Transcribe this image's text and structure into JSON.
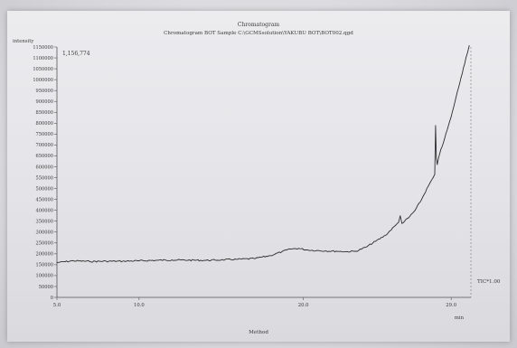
{
  "chart_data": {
    "type": "line",
    "title": "Chromatogram",
    "subtitle": "Chromatogram BOT Sample C:\\GCMSsolution\\YAKUBU BOT\\BOT002.qgd",
    "ylabel": "intensity",
    "xlabel": "min",
    "max_label": "1,156,774",
    "series_label": "TIC*1.00",
    "footer": "Method",
    "xlim": [
      5.0,
      30.2
    ],
    "ylim": [
      0,
      1150000
    ],
    "x_ticks": [
      {
        "value": 5.0,
        "label": "5.0"
      },
      {
        "value": 10.0,
        "label": "10.0"
      },
      {
        "value": 20.0,
        "label": "20.0"
      },
      {
        "value": 29.0,
        "label": "29.0"
      }
    ],
    "y_ticks": [
      {
        "value": 0,
        "label": "0"
      },
      {
        "value": 50000,
        "label": "50000"
      },
      {
        "value": 100000,
        "label": "100000"
      },
      {
        "value": 150000,
        "label": "150000"
      },
      {
        "value": 200000,
        "label": "200000"
      },
      {
        "value": 250000,
        "label": "250000"
      },
      {
        "value": 300000,
        "label": "300000"
      },
      {
        "value": 350000,
        "label": "350000"
      },
      {
        "value": 400000,
        "label": "400000"
      },
      {
        "value": 450000,
        "label": "450000"
      },
      {
        "value": 500000,
        "label": "500000"
      },
      {
        "value": 550000,
        "label": "550000"
      },
      {
        "value": 600000,
        "label": "600000"
      },
      {
        "value": 650000,
        "label": "650000"
      },
      {
        "value": 700000,
        "label": "700000"
      },
      {
        "value": 750000,
        "label": "750000"
      },
      {
        "value": 800000,
        "label": "800000"
      },
      {
        "value": 850000,
        "label": "850000"
      },
      {
        "value": 900000,
        "label": "900000"
      },
      {
        "value": 950000,
        "label": "950000"
      },
      {
        "value": 1000000,
        "label": "1000000"
      },
      {
        "value": 1050000,
        "label": "1050000"
      },
      {
        "value": 1100000,
        "label": "1100000"
      },
      {
        "value": 1150000,
        "label": "1150000"
      }
    ],
    "series": [
      {
        "name": "TIC*1.00",
        "x": [
          5.0,
          6.0,
          7.0,
          8.0,
          9.0,
          10.0,
          11.0,
          12.0,
          13.0,
          14.0,
          15.0,
          16.0,
          17.0,
          18.0,
          18.7,
          19.2,
          19.7,
          20.2,
          20.8,
          21.4,
          22.0,
          22.6,
          23.2,
          23.8,
          24.4,
          25.0,
          25.6,
          25.8,
          25.9,
          26.0,
          26.4,
          26.8,
          27.2,
          27.6,
          27.9,
          28.0,
          28.05,
          28.1,
          28.15,
          28.3,
          28.6,
          29.0,
          29.3,
          29.6,
          29.9,
          30.1
        ],
        "y": [
          160000,
          168000,
          165000,
          166000,
          166000,
          168000,
          170000,
          172000,
          171000,
          170000,
          172000,
          175000,
          178000,
          192000,
          210000,
          222000,
          225000,
          218000,
          215000,
          213000,
          212000,
          210000,
          212000,
          230000,
          258000,
          285000,
          330000,
          345000,
          375000,
          340000,
          365000,
          400000,
          450000,
          510000,
          550000,
          565000,
          790000,
          640000,
          610000,
          660000,
          730000,
          830000,
          920000,
          1010000,
          1100000,
          1156774
        ]
      }
    ]
  }
}
